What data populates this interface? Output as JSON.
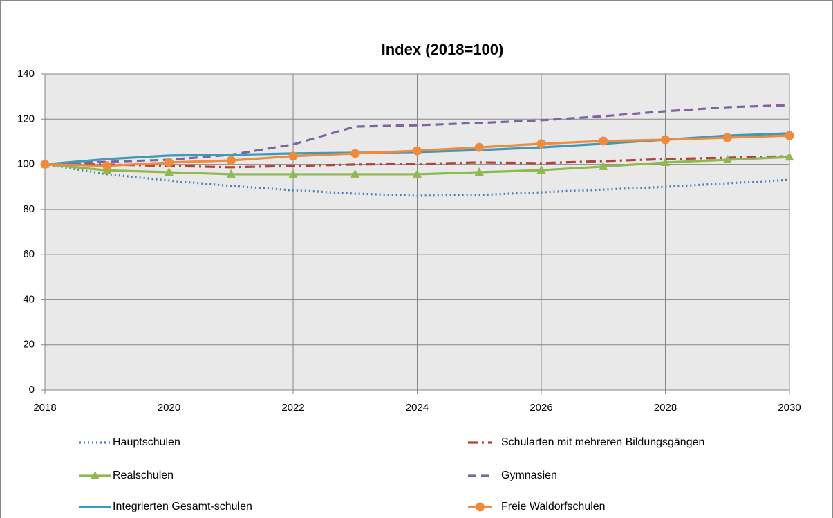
{
  "chart_data": {
    "type": "line",
    "title": "Index (2018=100)",
    "x": [
      2018,
      2019,
      2020,
      2021,
      2022,
      2023,
      2024,
      2025,
      2026,
      2027,
      2028,
      2029,
      2030
    ],
    "xlim": [
      2018,
      2030
    ],
    "xticks": [
      2018,
      2020,
      2022,
      2024,
      2026,
      2028,
      2030
    ],
    "ylim": [
      0,
      140
    ],
    "yticks": [
      0,
      20,
      40,
      60,
      80,
      100,
      120,
      140
    ],
    "grid": true,
    "legend": "bottom",
    "series": [
      {
        "name": "Hauptschulen",
        "color": "#4a7ebb",
        "dash": "dotted",
        "marker": "none",
        "values": [
          100,
          95.6,
          92.8,
          90.4,
          88.5,
          87,
          86.1,
          86.4,
          87.6,
          88.8,
          90,
          91.6,
          93.1
        ]
      },
      {
        "name": "Schularten mit mehreren Bildungsgängen",
        "color": "#b5413b",
        "dash": "dashdot",
        "marker": "none",
        "values": [
          100,
          99.9,
          99.3,
          98.7,
          99.3,
          99.9,
          100.2,
          100.8,
          100.5,
          101.4,
          102.3,
          102.9,
          103.6
        ]
      },
      {
        "name": "Realschulen",
        "color": "#8db94f",
        "dash": "solid",
        "marker": "triangle",
        "values": [
          100,
          97.3,
          96.5,
          95.6,
          95.6,
          95.6,
          95.6,
          96.5,
          97.4,
          99,
          100.8,
          102,
          103.2
        ]
      },
      {
        "name": "Gymnasien",
        "color": "#8064a2",
        "dash": "dashed",
        "marker": "none",
        "values": [
          100,
          101.1,
          102,
          104.2,
          108.8,
          116.7,
          117.3,
          118.3,
          119.5,
          121.3,
          123.5,
          125.3,
          126.2
        ]
      },
      {
        "name": "Integrierten Gesamt-schulen",
        "color": "#3f99b8",
        "dash": "solid",
        "marker": "none",
        "values": [
          100,
          102.3,
          103.9,
          104.2,
          104.8,
          105.1,
          105.4,
          106.3,
          107.5,
          109.1,
          110.9,
          112.7,
          113.7
        ]
      },
      {
        "name": "Freie Waldorfschulen",
        "color": "#ee8b3e",
        "dash": "solid",
        "marker": "circle",
        "values": [
          100,
          99.3,
          100.8,
          101.7,
          103.6,
          104.8,
          106,
          107.5,
          109.1,
          110.3,
          110.9,
          111.8,
          112.7
        ]
      }
    ]
  }
}
